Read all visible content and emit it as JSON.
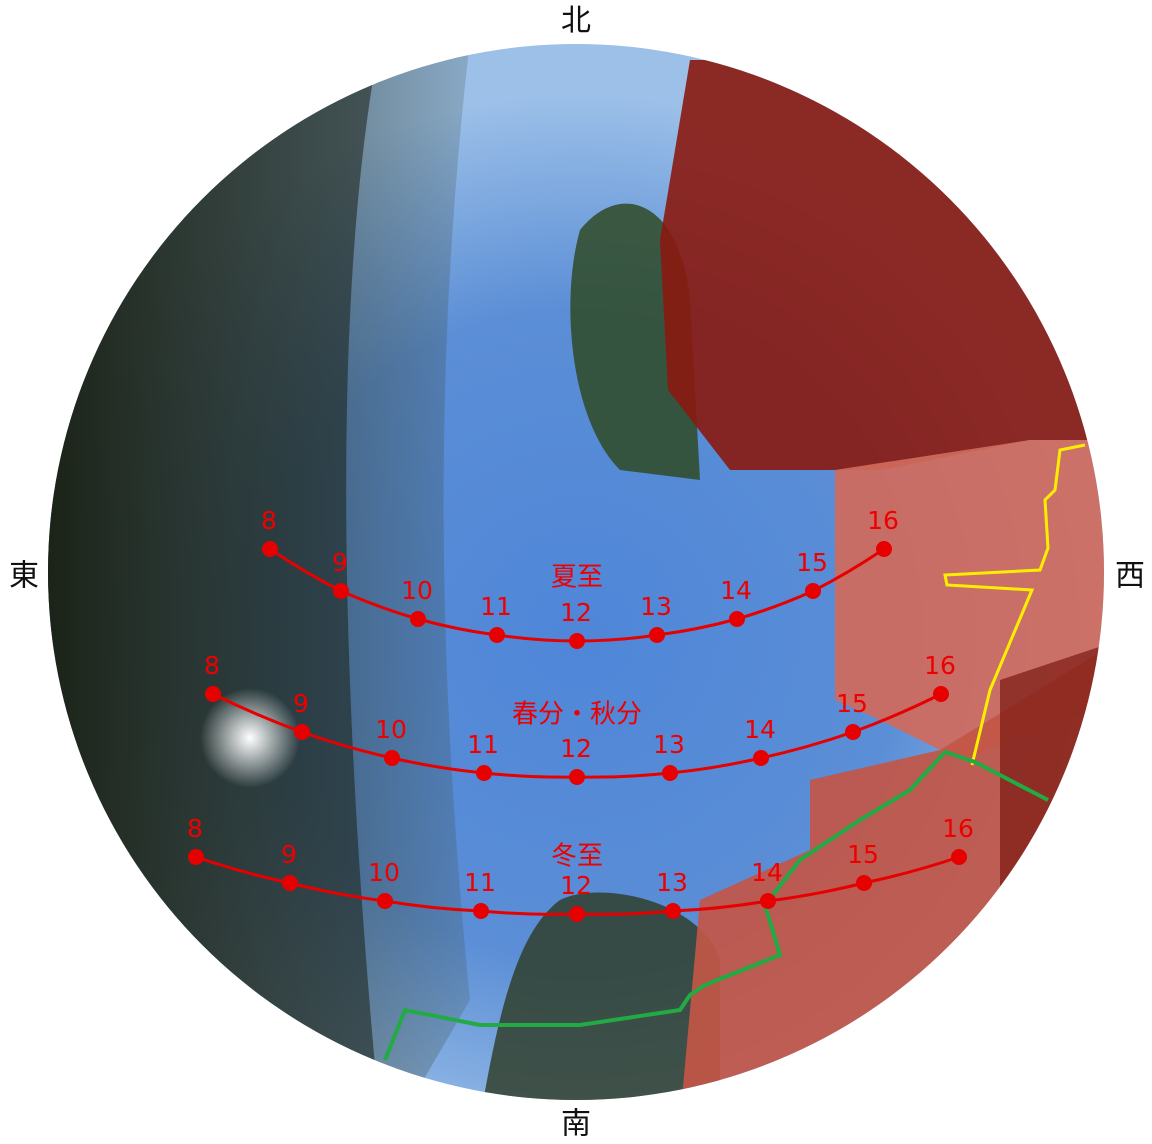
{
  "compass": {
    "north": "北",
    "east": "東",
    "west": "西",
    "south": "南"
  },
  "sun_paths": [
    {
      "name": "夏至",
      "hours": [
        8,
        9,
        10,
        11,
        12,
        13,
        14,
        15,
        16
      ]
    },
    {
      "name": "春分・秋分",
      "hours": [
        8,
        9,
        10,
        11,
        12,
        13,
        14,
        15,
        16
      ]
    },
    {
      "name": "冬至",
      "hours": [
        8,
        9,
        10,
        11,
        12,
        13,
        14,
        15,
        16
      ]
    }
  ]
}
